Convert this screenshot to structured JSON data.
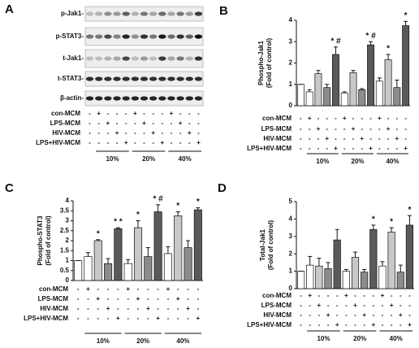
{
  "blot": {
    "panel": "A",
    "proteins": [
      "p-Jak1-",
      "p-STAT3-",
      "t-Jak1-",
      "t-STAT3-",
      "β-actin-"
    ],
    "conditions": [
      {
        "label": "con-MCM",
        "signs": [
          "-",
          "+",
          "-",
          "-",
          "-",
          "+",
          "-",
          "-",
          "-",
          "+",
          "-",
          "-",
          "-"
        ]
      },
      {
        "label": "LPS-MCM",
        "signs": [
          "-",
          "-",
          "+",
          "-",
          "-",
          "-",
          "+",
          "-",
          "-",
          "-",
          "+",
          "-",
          "-"
        ]
      },
      {
        "label": "HIV-MCM",
        "signs": [
          "-",
          "-",
          "-",
          "+",
          "-",
          "-",
          "-",
          "+",
          "-",
          "-",
          "-",
          "+",
          "-"
        ]
      },
      {
        "label": "LPS+HIV-MCM",
        "signs": [
          "-",
          "-",
          "-",
          "-",
          "+",
          "-",
          "-",
          "-",
          "+",
          "-",
          "-",
          "-",
          "+"
        ]
      }
    ],
    "groups": [
      "10%",
      "20%",
      "40%"
    ]
  },
  "chart_data": [
    {
      "type": "bar",
      "panel": "B",
      "ylabel": "Phospho-Jak1",
      "ylabel_sub": "(Fold of control)",
      "ylim": [
        0,
        4
      ],
      "yticks": [
        0,
        1,
        2,
        3,
        4
      ],
      "colors": [
        "#ffffff",
        "#ffffff",
        "#c8c8c8",
        "#8c8c8c",
        "#5a5a5a",
        "#ffffff",
        "#c8c8c8",
        "#8c8c8c",
        "#5a5a5a",
        "#ffffff",
        "#c8c8c8",
        "#8c8c8c",
        "#5a5a5a"
      ],
      "values": [
        1.0,
        0.65,
        1.5,
        0.85,
        2.4,
        0.6,
        1.55,
        0.75,
        2.85,
        1.15,
        2.15,
        0.85,
        3.75
      ],
      "errors": [
        0,
        0.1,
        0.15,
        0.15,
        0.35,
        0.05,
        0.1,
        0.05,
        0.15,
        0.15,
        0.25,
        0.35,
        0.2
      ],
      "annotations": [
        null,
        null,
        null,
        null,
        "* #",
        null,
        null,
        null,
        "* #",
        null,
        "*",
        null,
        "*"
      ],
      "conditions": [
        {
          "label": "con-MCM",
          "signs": [
            "-",
            "+",
            "-",
            "-",
            "-",
            "+",
            "-",
            "-",
            "-",
            "+",
            "-",
            "-",
            "-"
          ]
        },
        {
          "label": "LPS-MCM",
          "signs": [
            "-",
            "-",
            "+",
            "-",
            "-",
            "-",
            "+",
            "-",
            "-",
            "-",
            "+",
            "-",
            "-"
          ]
        },
        {
          "label": "HIV-MCM",
          "signs": [
            "-",
            "-",
            "-",
            "+",
            "-",
            "-",
            "-",
            "+",
            "-",
            "-",
            "-",
            "+",
            "-"
          ]
        },
        {
          "label": "LPS+HIV-MCM",
          "signs": [
            "-",
            "-",
            "-",
            "-",
            "+",
            "-",
            "-",
            "-",
            "+",
            "-",
            "-",
            "-",
            "+"
          ]
        }
      ],
      "groups": [
        "10%",
        "20%",
        "40%"
      ]
    },
    {
      "type": "bar",
      "panel": "C",
      "ylabel": "Phospho-STAT3",
      "ylabel_sub": "(Fold of control)",
      "ylim": [
        0,
        4
      ],
      "yticks": [
        0,
        0.5,
        1,
        1.5,
        2,
        2.5,
        3,
        3.5,
        4
      ],
      "colors": [
        "#ffffff",
        "#ffffff",
        "#c8c8c8",
        "#8c8c8c",
        "#5a5a5a",
        "#ffffff",
        "#c8c8c8",
        "#8c8c8c",
        "#5a5a5a",
        "#ffffff",
        "#c8c8c8",
        "#8c8c8c",
        "#5a5a5a"
      ],
      "values": [
        1.0,
        1.2,
        2.0,
        0.85,
        2.6,
        0.85,
        2.65,
        1.2,
        3.45,
        1.35,
        3.25,
        1.65,
        3.55
      ],
      "errors": [
        0,
        0.2,
        0.05,
        0.25,
        0.05,
        0.2,
        0.35,
        0.45,
        0.35,
        0.35,
        0.2,
        0.35,
        0.1
      ],
      "annotations": [
        null,
        null,
        "*",
        null,
        "* *",
        null,
        "*",
        null,
        "* #",
        null,
        "*",
        null,
        "*"
      ],
      "conditions": [
        {
          "label": "con-MCM",
          "signs": [
            "-",
            "+",
            "-",
            "-",
            "-",
            "+",
            "-",
            "-",
            "-",
            "+",
            "-",
            "-",
            "-"
          ]
        },
        {
          "label": "LPS-MCM",
          "signs": [
            "-",
            "-",
            "+",
            "-",
            "-",
            "-",
            "+",
            "-",
            "-",
            "-",
            "+",
            "-",
            "-"
          ]
        },
        {
          "label": "HIV-MCM",
          "signs": [
            "-",
            "-",
            "-",
            "+",
            "-",
            "-",
            "-",
            "+",
            "-",
            "-",
            "-",
            "+",
            "-"
          ]
        },
        {
          "label": "LPS+HIV-MCM",
          "signs": [
            "-",
            "-",
            "-",
            "-",
            "+",
            "-",
            "-",
            "-",
            "+",
            "-",
            "-",
            "-",
            "+"
          ]
        }
      ],
      "groups": [
        "10%",
        "20%",
        "40%"
      ]
    },
    {
      "type": "bar",
      "panel": "D",
      "ylabel": "Total-Jak1",
      "ylabel_sub": "(Fold of control)",
      "ylim": [
        0,
        5
      ],
      "yticks": [
        0,
        1,
        2,
        3,
        4,
        5
      ],
      "colors": [
        "#ffffff",
        "#ffffff",
        "#c8c8c8",
        "#8c8c8c",
        "#5a5a5a",
        "#ffffff",
        "#c8c8c8",
        "#8c8c8c",
        "#5a5a5a",
        "#ffffff",
        "#c8c8c8",
        "#8c8c8c",
        "#5a5a5a"
      ],
      "values": [
        1.0,
        1.35,
        1.3,
        1.15,
        2.8,
        1.0,
        1.8,
        0.95,
        3.4,
        1.3,
        3.25,
        0.95,
        3.65
      ],
      "errors": [
        0,
        0.5,
        0.45,
        0.35,
        0.6,
        0.1,
        0.3,
        0.15,
        0.25,
        0.25,
        0.25,
        0.4,
        0.55
      ],
      "annotations": [
        null,
        null,
        null,
        null,
        null,
        null,
        null,
        null,
        "*",
        null,
        "*",
        null,
        "*"
      ],
      "conditions": [
        {
          "label": "con-MCM",
          "signs": [
            "-",
            "+",
            "-",
            "-",
            "-",
            "+",
            "-",
            "-",
            "-",
            "+",
            "-",
            "-",
            "-"
          ]
        },
        {
          "label": "LPS-MCM",
          "signs": [
            "-",
            "-",
            "+",
            "-",
            "-",
            "-",
            "+",
            "-",
            "-",
            "-",
            "+",
            "-",
            "-"
          ]
        },
        {
          "label": "HIV-MCM",
          "signs": [
            "-",
            "-",
            "-",
            "+",
            "-",
            "-",
            "-",
            "+",
            "-",
            "-",
            "-",
            "+",
            "-"
          ]
        },
        {
          "label": "LPS+HIV-MCM",
          "signs": [
            "-",
            "-",
            "-",
            "-",
            "+",
            "-",
            "-",
            "-",
            "+",
            "-",
            "-",
            "-",
            "+"
          ]
        }
      ],
      "groups": [
        "10%",
        "20%",
        "40%"
      ]
    }
  ]
}
